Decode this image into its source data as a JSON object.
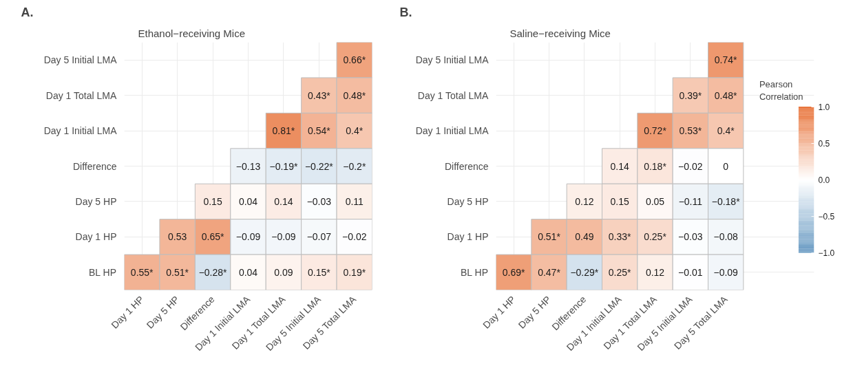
{
  "chart_data": [
    {
      "type": "heatmap",
      "title": "Ethanol−receiving Mice",
      "annotations": [
        "A."
      ],
      "grid": true,
      "categories": [
        "Day 1 HP",
        "Day 5 HP",
        "Difference",
        "Day 1 Initial LMA",
        "Day 1 Total LMA",
        "Day 5 Initial LMA",
        "Day 5 Total LMA"
      ],
      "y_categories": [
        "Day 5 Initial LMA",
        "Day 1 Total LMA",
        "Day 1 Initial LMA",
        "Difference",
        "Day 5 HP",
        "Day 1 HP",
        "BL HP"
      ],
      "cells": [
        [
          null,
          null,
          null,
          null,
          null,
          null,
          0.66
        ],
        [
          null,
          null,
          null,
          null,
          null,
          0.43,
          0.48
        ],
        [
          null,
          null,
          null,
          null,
          0.81,
          0.54,
          0.4
        ],
        [
          null,
          null,
          null,
          -0.13,
          -0.19,
          -0.22,
          -0.2
        ],
        [
          null,
          null,
          0.15,
          0.04,
          0.14,
          -0.03,
          0.11
        ],
        [
          null,
          0.53,
          0.65,
          -0.09,
          -0.09,
          -0.07,
          -0.02
        ],
        [
          0.55,
          0.51,
          -0.28,
          0.04,
          0.09,
          0.15,
          0.19
        ]
      ],
      "cell_labels": [
        [
          null,
          null,
          null,
          null,
          null,
          null,
          "0.66*"
        ],
        [
          null,
          null,
          null,
          null,
          null,
          "0.43*",
          "0.48*"
        ],
        [
          null,
          null,
          null,
          null,
          "0.81*",
          "0.54*",
          "0.4*"
        ],
        [
          null,
          null,
          null,
          "−0.13",
          "−0.19*",
          "−0.22*",
          "−0.2*"
        ],
        [
          null,
          null,
          "0.15",
          "0.04",
          "0.14",
          "−0.03",
          "0.11"
        ],
        [
          null,
          "0.53",
          "0.65*",
          "−0.09",
          "−0.09",
          "−0.07",
          "−0.02"
        ],
        [
          "0.55*",
          "0.51*",
          "−0.28*",
          "0.04",
          "0.09",
          "0.15*",
          "0.19*"
        ]
      ]
    },
    {
      "type": "heatmap",
      "title": "Saline−receiving Mice",
      "annotations": [
        "B."
      ],
      "grid": true,
      "clim": [
        -1,
        1
      ],
      "clabel": "Pearson Correlation",
      "cticks": [
        {
          "value": 1,
          "label": "1.0"
        },
        {
          "value": 0.5,
          "label": "0.5"
        },
        {
          "value": 0,
          "label": "0.0"
        },
        {
          "value": -0.5,
          "label": "−0.5"
        },
        {
          "value": -1,
          "label": "−1.0"
        }
      ],
      "categories": [
        "Day 1 HP",
        "Day 5 HP",
        "Difference",
        "Day 1 Initial LMA",
        "Day 1 Total LMA",
        "Day 5 Initial LMA",
        "Day 5 Total LMA"
      ],
      "y_categories": [
        "Day 5 Initial LMA",
        "Day 1 Total LMA",
        "Day 1 Initial LMA",
        "Difference",
        "Day 5 HP",
        "Day 1 HP",
        "BL HP"
      ],
      "cells": [
        [
          null,
          null,
          null,
          null,
          null,
          null,
          0.74
        ],
        [
          null,
          null,
          null,
          null,
          null,
          0.39,
          0.48
        ],
        [
          null,
          null,
          null,
          null,
          0.72,
          0.53,
          0.4
        ],
        [
          null,
          null,
          null,
          0.14,
          0.18,
          -0.02,
          0
        ],
        [
          null,
          null,
          0.12,
          0.15,
          0.05,
          -0.11,
          -0.18
        ],
        [
          null,
          0.51,
          0.49,
          0.33,
          0.25,
          -0.03,
          -0.08
        ],
        [
          0.69,
          0.47,
          -0.29,
          0.25,
          0.12,
          -0.01,
          -0.09
        ]
      ],
      "cell_labels": [
        [
          null,
          null,
          null,
          null,
          null,
          null,
          "0.74*"
        ],
        [
          null,
          null,
          null,
          null,
          null,
          "0.39*",
          "0.48*"
        ],
        [
          null,
          null,
          null,
          null,
          "0.72*",
          "0.53*",
          "0.4*"
        ],
        [
          null,
          null,
          null,
          "0.14",
          "0.18*",
          "−0.02",
          "0"
        ],
        [
          null,
          null,
          "0.12",
          "0.15",
          "0.05",
          "−0.11",
          "−0.18*"
        ],
        [
          null,
          "0.51*",
          "0.49",
          "0.33*",
          "0.25*",
          "−0.03",
          "−0.08"
        ],
        [
          "0.69*",
          "0.47*",
          "−0.29*",
          "0.25*",
          "0.12",
          "−0.01",
          "−0.09"
        ]
      ]
    }
  ]
}
